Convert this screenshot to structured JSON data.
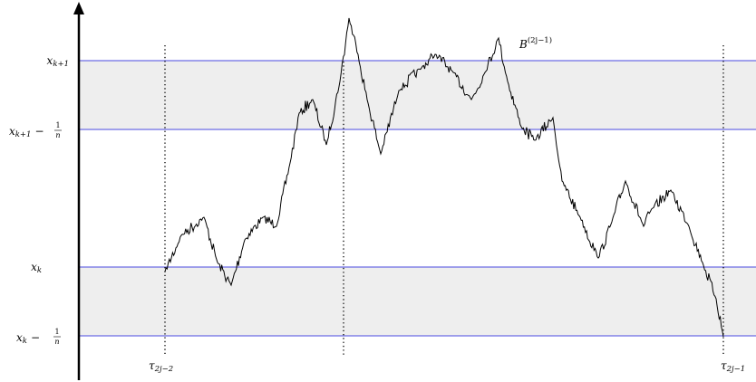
{
  "levels": [
    {
      "var": "x",
      "sub": "k+1"
    },
    {
      "var": "x",
      "sub": "k+1",
      "op": "−",
      "num": "1",
      "den": "n"
    },
    {
      "var": "x",
      "sub": "k"
    },
    {
      "var": "x",
      "sub": "k",
      "op": "−",
      "num": "1",
      "den": "n"
    }
  ],
  "path_label": {
    "var": "B",
    "sup": "(2j−1)"
  },
  "times": [
    {
      "var": "τ",
      "sub": "2j−2"
    },
    {
      "var": "τ",
      "sub": "2j−1"
    }
  ]
}
